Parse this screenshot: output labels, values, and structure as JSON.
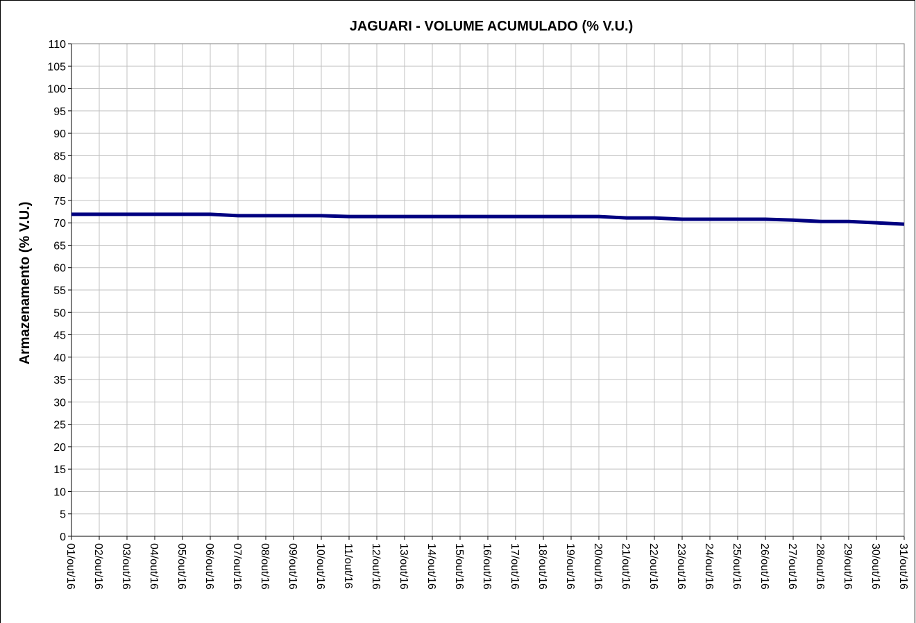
{
  "chart_data": {
    "type": "line",
    "title": "JAGUARI - VOLUME ACUMULADO (% V.U.)",
    "y_label": "Armazenamento (% V.U.)",
    "categories": [
      "01/out/16",
      "02/out/16",
      "03/out/16",
      "04/out/16",
      "05/out/16",
      "06/out/16",
      "07/out/16",
      "08/out/16",
      "09/out/16",
      "10/out/16",
      "11/out/16",
      "12/out/16",
      "13/out/16",
      "14/out/16",
      "15/out/16",
      "16/out/16",
      "17/out/16",
      "18/out/16",
      "19/out/16",
      "20/out/16",
      "21/out/16",
      "22/out/16",
      "23/out/16",
      "24/out/16",
      "25/out/16",
      "26/out/16",
      "27/out/16",
      "28/out/16",
      "29/out/16",
      "30/out/16",
      "31/out/16"
    ],
    "series": [
      {
        "name": "Armazenamento",
        "color": "#000080",
        "values": [
          71.9,
          71.9,
          71.9,
          71.9,
          71.9,
          71.9,
          71.6,
          71.6,
          71.6,
          71.6,
          71.4,
          71.4,
          71.4,
          71.4,
          71.4,
          71.4,
          71.4,
          71.4,
          71.4,
          71.4,
          71.1,
          71.1,
          70.8,
          70.8,
          70.8,
          70.8,
          70.6,
          70.3,
          70.3,
          70.0,
          69.7
        ]
      }
    ],
    "ylim": [
      0,
      110
    ],
    "yticks": [
      0,
      5,
      10,
      15,
      20,
      25,
      30,
      35,
      40,
      45,
      50,
      55,
      60,
      65,
      70,
      75,
      80,
      85,
      90,
      95,
      100,
      105,
      110
    ],
    "grid": true
  }
}
